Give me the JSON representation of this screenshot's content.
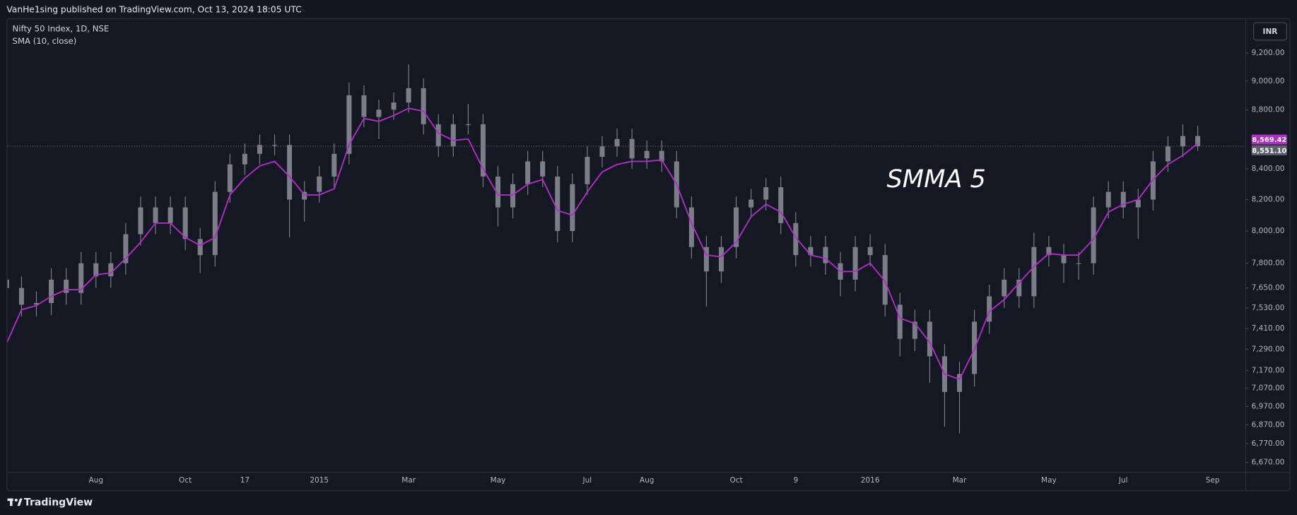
{
  "header": {
    "text": "VanHe1sing published on TradingView.com, Oct 13, 2024 18:05 UTC"
  },
  "footer": {
    "brand": "TradingView"
  },
  "chart_data": {
    "type": "candlestick",
    "annotation": "SMMA 5",
    "currency": "INR",
    "log": true,
    "grid": false,
    "ylim": [
      6620,
      9450
    ],
    "yticks": [
      {
        "value": 9200,
        "label": "9,200.00"
      },
      {
        "value": 9000,
        "label": "9,000.00"
      },
      {
        "value": 8800,
        "label": "8,800.00"
      },
      {
        "value": 8400,
        "label": "8,400.00"
      },
      {
        "value": 8200,
        "label": "8,200.00"
      },
      {
        "value": 8000,
        "label": "8,000.00"
      },
      {
        "value": 7800,
        "label": "7,800.00"
      },
      {
        "value": 7650,
        "label": "7,650.00"
      },
      {
        "value": 7530,
        "label": "7,530.00"
      },
      {
        "value": 7410,
        "label": "7,410.00"
      },
      {
        "value": 7290,
        "label": "7,290.00"
      },
      {
        "value": 7170,
        "label": "7,170.00"
      },
      {
        "value": 7070,
        "label": "7,070.00"
      },
      {
        "value": 6970,
        "label": "6,970.00"
      },
      {
        "value": 6870,
        "label": "6,870.00"
      },
      {
        "value": 6770,
        "label": "6,770.00"
      },
      {
        "value": 6670,
        "label": "6,670.00"
      }
    ],
    "categories": [
      null,
      null,
      null,
      null,
      null,
      null,
      "Aug",
      null,
      null,
      null,
      null,
      null,
      "Oct",
      null,
      null,
      null,
      "17",
      null,
      null,
      null,
      null,
      "2015",
      null,
      null,
      null,
      null,
      null,
      "Mar",
      null,
      null,
      null,
      null,
      null,
      "May",
      null,
      null,
      null,
      null,
      null,
      "Jul",
      null,
      null,
      null,
      "Aug",
      null,
      null,
      null,
      null,
      null,
      "Oct",
      null,
      null,
      null,
      "9",
      null,
      null,
      null,
      null,
      "2016",
      null,
      null,
      null,
      null,
      null,
      "Mar",
      null,
      null,
      null,
      null,
      null,
      "May",
      null,
      null,
      null,
      null,
      "Jul",
      null,
      null,
      null,
      null,
      null,
      "Sep"
    ],
    "series": [
      {
        "name": "Nifty 50 Index, 1D, NSE",
        "type": "candlestick",
        "color": "#7b7e88",
        "last_label": "8,551.10",
        "open": [
          7700,
          7650,
          7550,
          7560,
          7700,
          7620,
          7800,
          7720,
          7800,
          7980,
          8150,
          8050,
          8150,
          7950,
          7850,
          8250,
          8430,
          8500,
          8560,
          8560,
          8200,
          8250,
          8350,
          8500,
          8900,
          8750,
          8800,
          8850,
          8950,
          8700,
          8550,
          8700,
          8700,
          8350,
          8150,
          8300,
          8450,
          8350,
          8000,
          8300,
          8480,
          8550,
          8600,
          8470,
          8520,
          8450,
          8150,
          7900,
          7750,
          7900,
          8150,
          8200,
          8280,
          8050,
          7850,
          7900,
          7800,
          7700,
          7900,
          7850,
          7550,
          7350,
          7450,
          7250,
          7050,
          7150,
          7450,
          7600,
          7700,
          7600,
          7900,
          7850,
          7800,
          7800,
          8150,
          8250,
          8150,
          8200,
          8450,
          8550,
          8620,
          null
        ],
        "high": [
          7770,
          7720,
          7630,
          7770,
          7770,
          7870,
          7870,
          7870,
          8050,
          8220,
          8220,
          8220,
          8220,
          8020,
          8320,
          8500,
          8570,
          8630,
          8630,
          8630,
          8320,
          8420,
          8570,
          8990,
          8970,
          8870,
          8920,
          9119,
          9020,
          8770,
          8770,
          8840,
          8770,
          8420,
          8370,
          8520,
          8520,
          8420,
          8370,
          8550,
          8620,
          8670,
          8670,
          8590,
          8590,
          8520,
          8220,
          7970,
          7970,
          8220,
          8270,
          8340,
          8350,
          8120,
          7970,
          7970,
          7870,
          7970,
          7980,
          7920,
          7620,
          7520,
          7520,
          7320,
          7220,
          7520,
          7670,
          7770,
          7770,
          7990,
          7970,
          7920,
          7870,
          8220,
          8320,
          8320,
          8270,
          8520,
          8620,
          8700,
          8690,
          null
        ],
        "low": [
          7580,
          7480,
          7480,
          7490,
          7550,
          7550,
          7650,
          7650,
          7730,
          7910,
          7980,
          7980,
          7880,
          7740,
          7780,
          8180,
          8360,
          8430,
          8490,
          7960,
          8060,
          8180,
          8280,
          8430,
          8680,
          8600,
          8730,
          8780,
          8630,
          8480,
          8480,
          8630,
          8280,
          8030,
          8080,
          8230,
          8280,
          7930,
          7930,
          8230,
          8410,
          8480,
          8400,
          8400,
          8380,
          8080,
          7830,
          7540,
          7680,
          7830,
          8080,
          8130,
          7980,
          7780,
          7780,
          7730,
          7600,
          7630,
          7780,
          7480,
          7250,
          7280,
          7100,
          6860,
          6825,
          7080,
          7380,
          7530,
          7530,
          7530,
          7780,
          7680,
          7700,
          7730,
          8080,
          8080,
          7950,
          8130,
          8380,
          8480,
          8520,
          null
        ],
        "close": [
          7650,
          7550,
          7560,
          7700,
          7620,
          7800,
          7720,
          7800,
          7980,
          8150,
          8050,
          8150,
          7950,
          7850,
          8250,
          8430,
          8500,
          8560,
          8560,
          8200,
          8250,
          8350,
          8500,
          8900,
          8750,
          8800,
          8850,
          8950,
          8700,
          8550,
          8700,
          8700,
          8350,
          8150,
          8300,
          8450,
          8350,
          8000,
          8300,
          8480,
          8550,
          8600,
          8470,
          8520,
          8450,
          8150,
          7900,
          7750,
          7900,
          8150,
          8200,
          8280,
          8050,
          7850,
          7900,
          7800,
          7700,
          7900,
          7850,
          7550,
          7350,
          7450,
          7250,
          7050,
          7150,
          7450,
          7600,
          7700,
          7600,
          7900,
          7850,
          7800,
          7800,
          8150,
          8250,
          8150,
          8200,
          8450,
          8550,
          8620,
          8551.1,
          null
        ]
      },
      {
        "name": "SMA (10, close)",
        "type": "line",
        "color": "#b32cc8",
        "last_label": "8,569.42",
        "values": [
          7325,
          7520,
          7545,
          7600,
          7640,
          7640,
          7730,
          7740,
          7830,
          7930,
          8050,
          8050,
          7960,
          7910,
          7960,
          8230,
          8340,
          8420,
          8450,
          8350,
          8230,
          8230,
          8270,
          8560,
          8740,
          8720,
          8760,
          8810,
          8790,
          8640,
          8590,
          8600,
          8400,
          8230,
          8230,
          8300,
          8330,
          8130,
          8100,
          8250,
          8380,
          8430,
          8450,
          8450,
          8460,
          8300,
          8050,
          7850,
          7840,
          7930,
          8090,
          8170,
          8120,
          7960,
          7850,
          7830,
          7750,
          7750,
          7800,
          7690,
          7470,
          7440,
          7330,
          7150,
          7120,
          7290,
          7510,
          7580,
          7680,
          7780,
          7860,
          7850,
          7850,
          7950,
          8120,
          8170,
          8200,
          8330,
          8430,
          8490,
          8569.42,
          null
        ]
      }
    ]
  }
}
